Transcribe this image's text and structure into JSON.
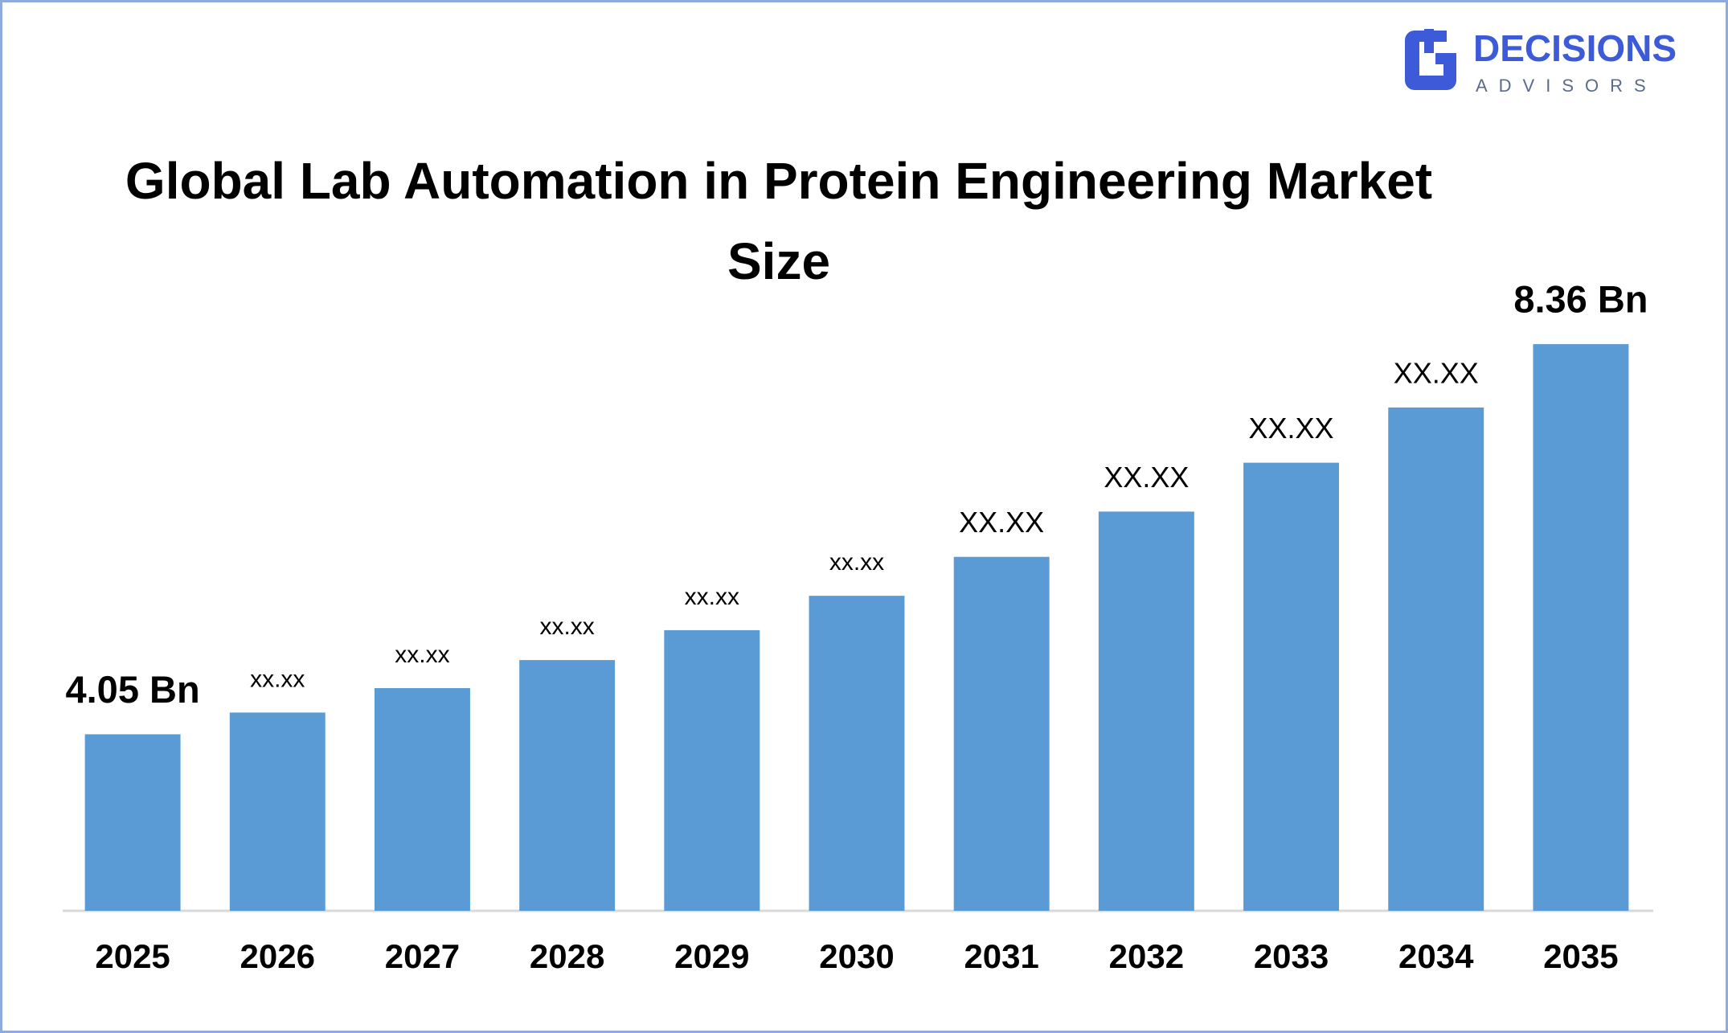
{
  "logo": {
    "name": "DECISIONS",
    "tagline": "ADVISORS"
  },
  "chart_data": {
    "type": "bar",
    "title": "Global Lab Automation in Protein Engineering Market Size",
    "categories": [
      "2025",
      "2026",
      "2027",
      "2028",
      "2029",
      "2030",
      "2031",
      "2032",
      "2033",
      "2034",
      "2035"
    ],
    "values": [
      4.05,
      4.29,
      4.56,
      4.87,
      5.2,
      5.58,
      6.01,
      6.51,
      7.05,
      7.66,
      8.36
    ],
    "value_labels": [
      "4.05 Bn",
      "xx.xx",
      "xx.xx",
      "xx.xx",
      "xx.xx",
      "xx.xx",
      "XX.XX",
      "XX.XX",
      "XX.XX",
      "XX.XX",
      "8.36 Bn"
    ],
    "color": "#5b9bd5",
    "ylim": [
      2.1,
      9.0
    ]
  }
}
